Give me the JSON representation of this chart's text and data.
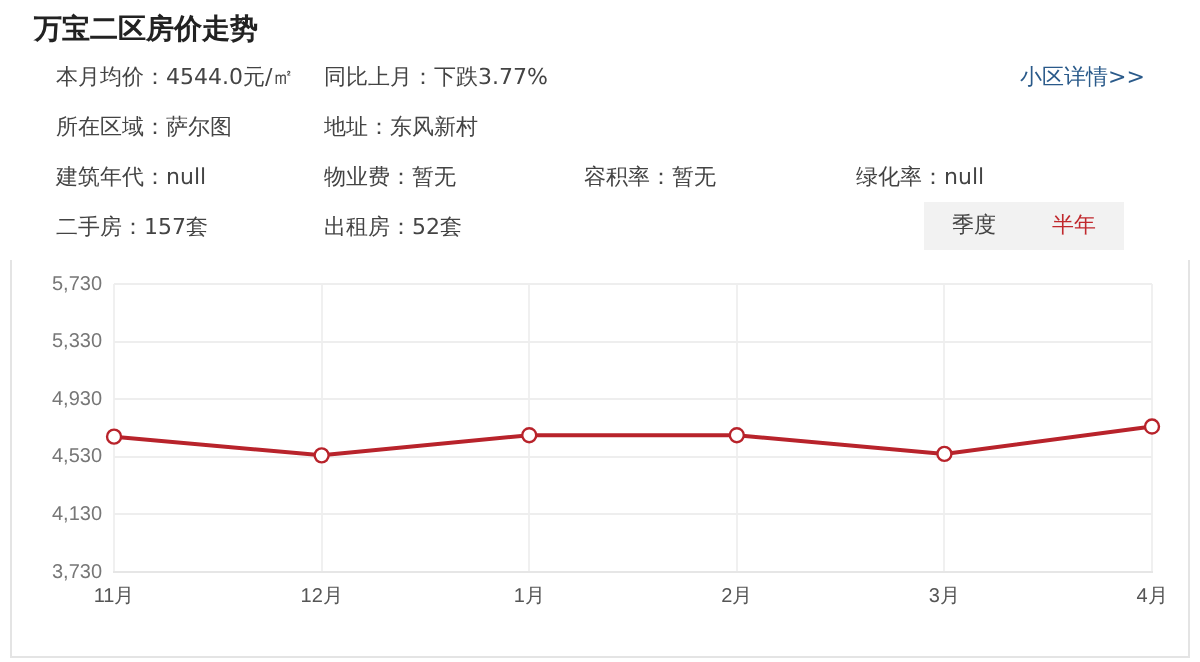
{
  "chart_data": {
    "type": "line",
    "title": "万宝二区房价走势",
    "annotations": [
      "本月均价：4544.0元/㎡",
      "同比上月：下跌3.77%",
      "小区详情>>",
      "所在区域：萨尔图",
      "地址：东风新村",
      "建筑年代：null",
      "物业费：暂无",
      "容积率：暂无",
      "绿化率：null",
      "二手房：157套",
      "出租房：52套",
      "季度",
      "半年"
    ],
    "categories": [
      "11月",
      "12月",
      "1月",
      "2月",
      "3月",
      "4月"
    ],
    "series": [
      {
        "color": "#b8232b",
        "values": [
          4670,
          4540,
          4680,
          4680,
          4550,
          4740
        ]
      }
    ],
    "ylim": [
      3730,
      5730
    ],
    "yticks": [
      {
        "value": 3730,
        "label": "3,730"
      },
      {
        "value": 4130,
        "label": "4,130"
      },
      {
        "value": 4530,
        "label": "4,530"
      },
      {
        "value": 4930,
        "label": "4,930"
      },
      {
        "value": 5330,
        "label": "5,330"
      },
      {
        "value": 5730,
        "label": "5,730"
      }
    ],
    "grid": true,
    "marker": "circle",
    "line_style": "solid",
    "legend": false
  }
}
